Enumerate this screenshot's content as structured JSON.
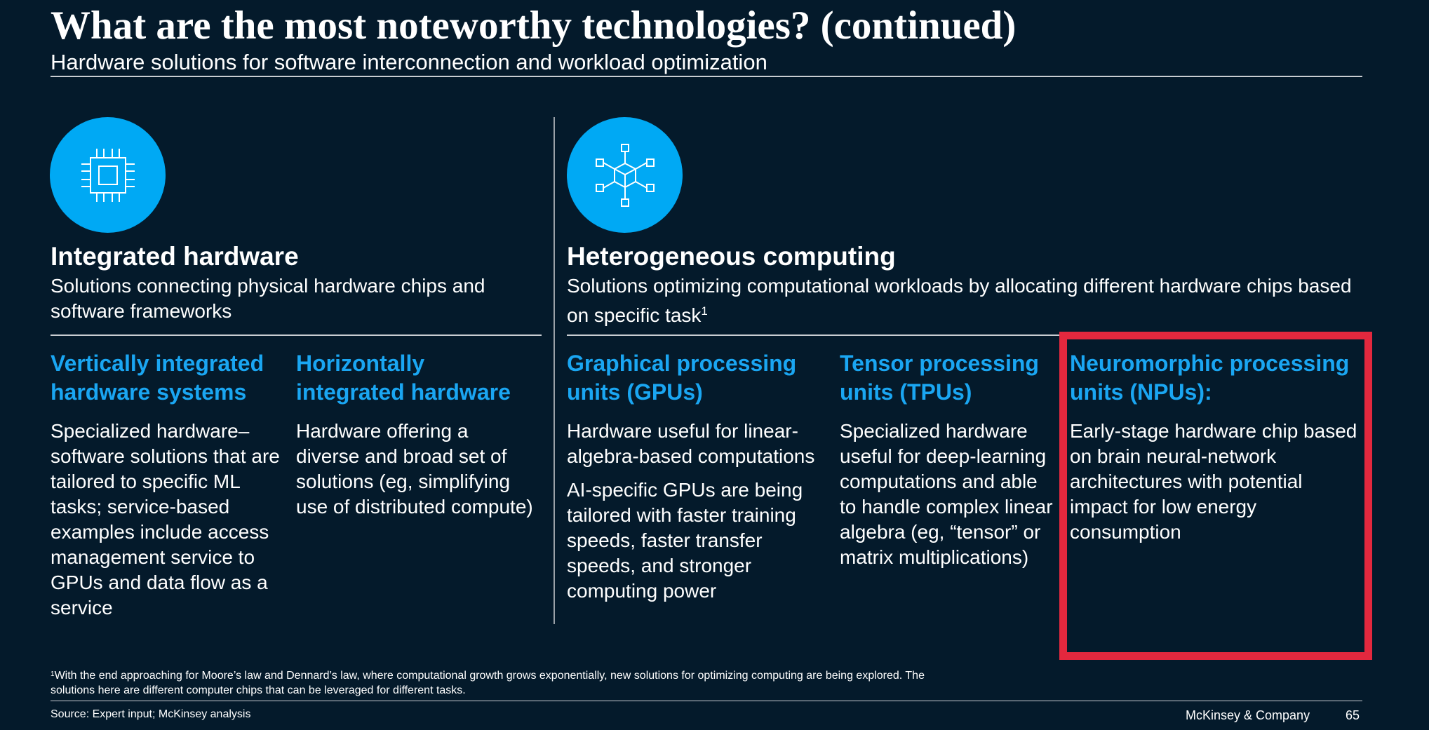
{
  "header": {
    "title": "What are the most noteworthy technologies? (continued)",
    "subtitle": "Hardware solutions for software interconnection and workload optimization"
  },
  "sections": {
    "integrated": {
      "icon": "cpu-chip-icon",
      "title": "Integrated hardware",
      "description": "Solutions connecting physical hardware chips and software frameworks",
      "columns": [
        {
          "heading": "Vertically integrated hardware systems",
          "body": "Specialized hardware–software solutions that are tailored to specific ML tasks; service-based examples include access management service to GPUs and data flow as a service"
        },
        {
          "heading": "Horizontally integrated hardware",
          "body": "Hardware offering a diverse and broad set of solutions (eg, simplifying use of distributed compute)"
        }
      ]
    },
    "heterogeneous": {
      "icon": "network-cube-icon",
      "title": "Heterogeneous computing",
      "description": "Solutions optimizing computational workloads by allocating different hardware chips based on specific task",
      "description_sup": "1",
      "columns": [
        {
          "heading": "Graphical processing units (GPUs)",
          "body": "Hardware useful for linear-algebra-based computations",
          "body2": "AI-specific GPUs are being tailored with faster training speeds, faster transfer speeds, and stronger computing power"
        },
        {
          "heading": "Tensor processing units (TPUs)",
          "body": "Specialized hardware useful for deep-learning computations and able to handle complex linear algebra (eg, “tensor” or matrix multiplications)"
        },
        {
          "heading": "Neuromorphic processing units (NPUs):",
          "body": "Early-stage hardware chip based on brain neural-network architectures with potential impact for low energy consumption"
        }
      ]
    }
  },
  "footer": {
    "footnote_mark": "1",
    "footnote": "With the end approaching for Moore’s law and Dennard’s law, where computational growth grows exponentially, new solutions for optimizing computing are being explored. The solutions here are different computer chips that can be leveraged for different tasks.",
    "source": "Source: Expert input; McKinsey analysis",
    "brand": "McKinsey & Company",
    "page_number": "65"
  },
  "colors": {
    "background": "#041a2b",
    "accent": "#00a9f4",
    "heading_blue": "#1aa6f2",
    "highlight": "#e3283e"
  }
}
